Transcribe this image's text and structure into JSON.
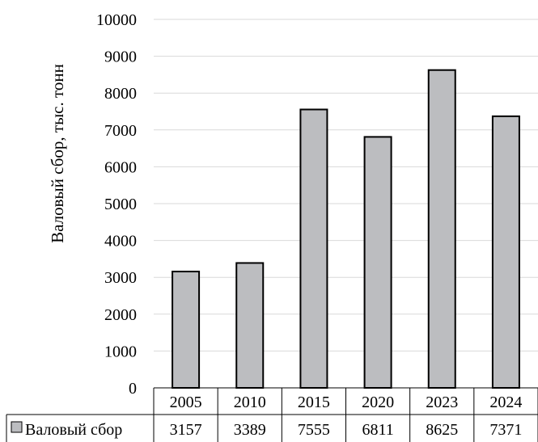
{
  "chart_data": {
    "type": "bar",
    "title": "",
    "xlabel": "",
    "ylabel": "Валовый сбор, тыс. тонн",
    "categories": [
      "2005",
      "2010",
      "2015",
      "2020",
      "2023",
      "2024"
    ],
    "series": [
      {
        "name": "Валовый сбор",
        "values": [
          3157,
          3389,
          7555,
          6811,
          8625,
          7371
        ]
      }
    ],
    "data_labels": [
      "3157",
      "3389",
      "7555",
      "6811",
      "8625",
      "7371"
    ],
    "ylim": [
      0,
      10000
    ],
    "yticks": [
      0,
      1000,
      2000,
      3000,
      4000,
      5000,
      6000,
      7000,
      8000,
      9000,
      10000
    ],
    "ytick_labels": [
      "0",
      "1000",
      "2000",
      "3000",
      "4000",
      "5000",
      "6000",
      "7000",
      "8000",
      "9000",
      "10000"
    ],
    "grid": true,
    "legend_position": "data-table-row",
    "bar_color": "#bcbdc0",
    "bar_edge_color": "#000000",
    "grid_color": "#d9d9d9"
  }
}
